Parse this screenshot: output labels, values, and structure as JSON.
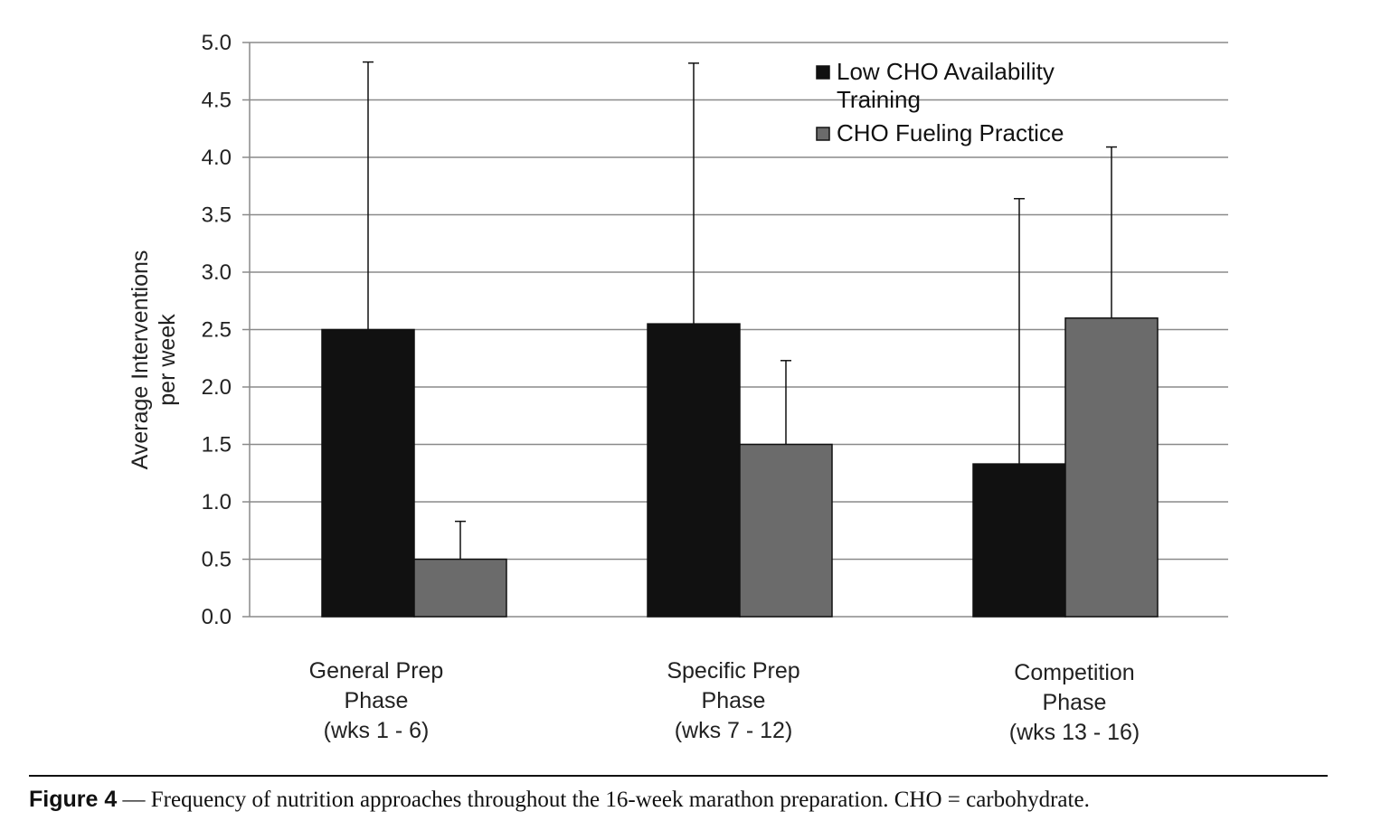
{
  "chart_data": {
    "type": "bar",
    "categories": [
      [
        "General Prep",
        "Phase",
        "(wks 1 - 6)"
      ],
      [
        "Specific Prep",
        "Phase",
        "(wks 7 - 12)"
      ],
      [
        "Competition",
        "Phase",
        "(wks 13 - 16)"
      ]
    ],
    "series": [
      {
        "name": "Low CHO Availability Training",
        "legend_lines": [
          "Low CHO Availability",
          "Training"
        ],
        "color": "#111111",
        "values": [
          2.5,
          2.55,
          1.33
        ],
        "error_upper": [
          4.83,
          4.82,
          3.64
        ]
      },
      {
        "name": "CHO Fueling Practice",
        "legend_lines": [
          "CHO Fueling Practice"
        ],
        "color": "#6b6b6b",
        "values": [
          0.5,
          1.5,
          2.6
        ],
        "error_upper": [
          0.83,
          2.23,
          4.09
        ]
      }
    ],
    "ylabel_lines": [
      "Average Interventions",
      "per week"
    ],
    "xlabel": "",
    "ylim": [
      0,
      5.0
    ],
    "yticks": [
      "0.0",
      "0.5",
      "1.0",
      "1.5",
      "2.0",
      "2.5",
      "3.0",
      "3.5",
      "4.0",
      "4.5",
      "5.0"
    ],
    "grid": true,
    "legend_position": "top-right"
  },
  "caption": {
    "label": "Figure 4",
    "text": " — Frequency of nutrition approaches throughout the 16-week marathon preparation. CHO = carbohydrate."
  }
}
